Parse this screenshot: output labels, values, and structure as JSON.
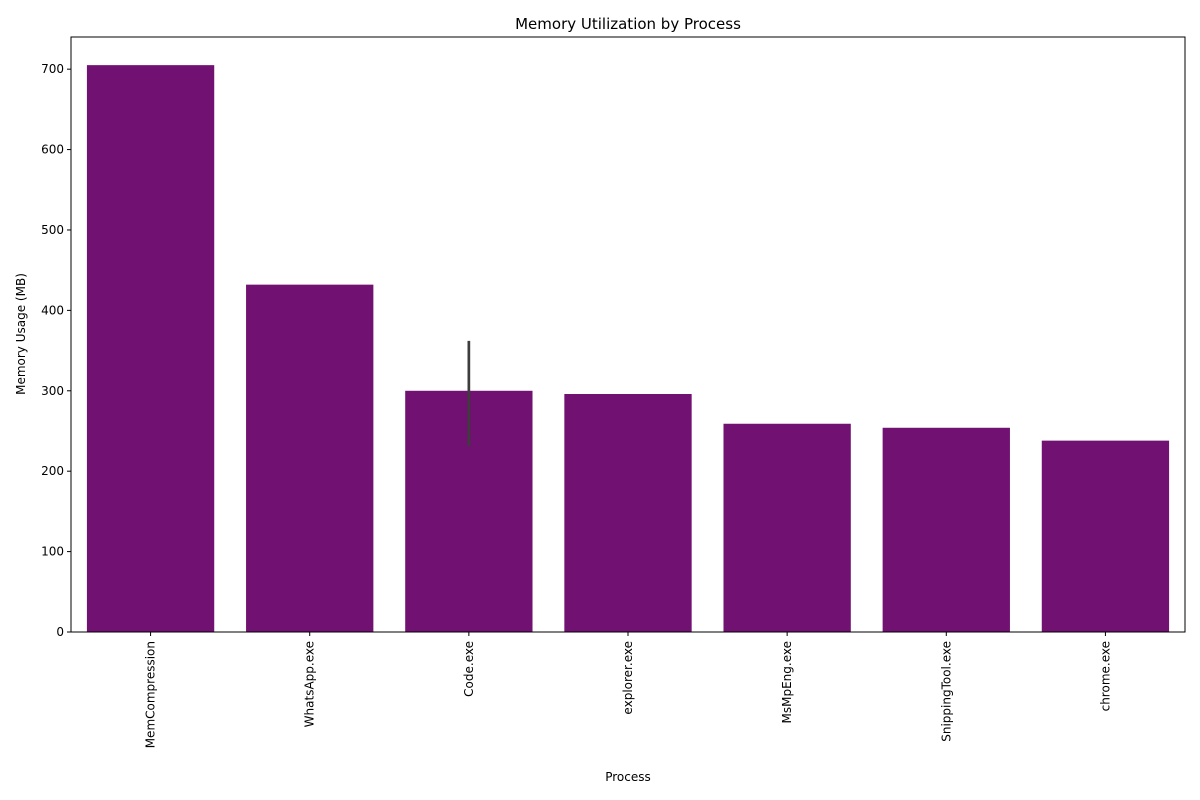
{
  "chart_data": {
    "type": "bar",
    "title": "Memory Utilization by Process",
    "xlabel": "Process",
    "ylabel": "Memory Usage (MB)",
    "categories": [
      "MemCompression",
      "WhatsApp.exe",
      "Code.exe",
      "explorer.exe",
      "MsMpEng.exe",
      "SnippingTool.exe",
      "chrome.exe"
    ],
    "values": [
      705,
      432,
      300,
      296,
      259,
      254,
      238
    ],
    "error_bars": [
      null,
      null,
      [
        231,
        362
      ],
      null,
      null,
      null,
      null
    ],
    "ylim": [
      0,
      740
    ],
    "yticks": [
      0,
      100,
      200,
      300,
      400,
      500,
      600,
      700
    ],
    "bar_color": "#711171",
    "error_color": "#3d3d3d",
    "grid": false,
    "legend": "none"
  }
}
